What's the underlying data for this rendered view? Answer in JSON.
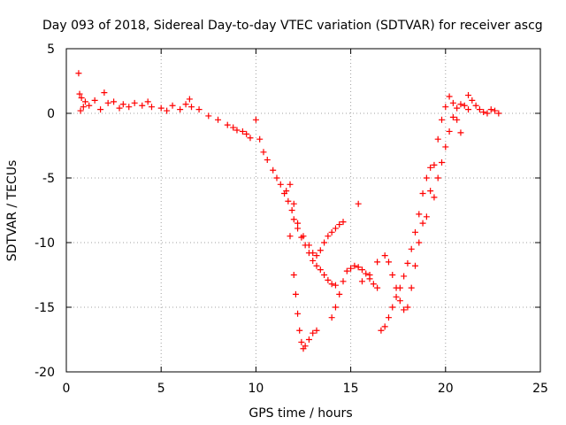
{
  "chart_data": {
    "type": "scatter",
    "title": "Day 093 of 2018, Sidereal Day-to-day VTEC variation (SDTVAR) for receiver ascg",
    "xlabel": "GPS time / hours",
    "ylabel": "SDTVAR / TECUs",
    "xlim": [
      0,
      25
    ],
    "ylim": [
      -20,
      5
    ],
    "xticks": [
      0,
      5,
      10,
      15,
      20,
      25
    ],
    "xtick_labels": [
      "0",
      "5",
      "10",
      "15",
      "20",
      "25"
    ],
    "yticks": [
      5,
      0,
      -5,
      -10,
      -15,
      -20
    ],
    "ytick_labels": [
      "5",
      "0",
      "-5",
      "-10",
      "-15",
      "-20"
    ],
    "grid": true,
    "marker": "plus",
    "color": "#ff0000",
    "series": [
      {
        "name": "SDTVAR",
        "x": [
          0.65,
          0.7,
          0.75,
          0.8,
          0.9,
          1.0,
          1.2,
          1.5,
          1.8,
          2.0,
          2.2,
          2.5,
          2.8,
          3.0,
          3.3,
          3.6,
          4.0,
          4.3,
          4.5,
          5.0,
          5.3,
          5.6,
          6.0,
          6.3,
          6.5,
          6.6,
          7.0,
          7.5,
          8.0,
          8.5,
          8.8,
          9.0,
          9.3,
          9.5,
          9.7,
          10.0,
          10.2,
          10.4,
          10.6,
          10.9,
          11.1,
          11.3,
          11.5,
          11.7,
          11.9,
          12.0,
          12.2,
          12.4,
          12.6,
          12.8,
          13.0,
          13.2,
          13.4,
          13.6,
          13.8,
          14.0,
          14.2,
          11.6,
          11.8,
          12.0,
          12.1,
          12.2,
          12.3,
          12.4,
          12.5,
          12.6,
          12.8,
          13.0,
          13.2,
          11.8,
          12.0,
          12.2,
          12.5,
          12.8,
          13.0,
          13.2,
          13.4,
          13.6,
          13.8,
          14.0,
          14.2,
          14.4,
          14.6,
          14.0,
          14.2,
          14.4,
          14.6,
          14.8,
          15.0,
          15.2,
          15.4,
          15.6,
          15.8,
          16.0,
          16.2,
          16.4,
          15.6,
          16.0,
          16.4,
          16.8,
          17.0,
          17.2,
          17.4,
          17.6,
          17.8,
          18.0,
          18.2,
          18.4,
          18.6,
          18.8,
          16.6,
          16.8,
          17.0,
          17.2,
          17.4,
          17.6,
          17.8,
          18.0,
          18.2,
          18.4,
          18.6,
          18.8,
          19.0,
          19.2,
          15.4,
          19.0,
          19.2,
          19.4,
          19.6,
          19.8,
          20.0,
          20.2,
          20.4,
          20.6,
          20.8,
          19.4,
          19.6,
          19.8,
          20.0,
          20.2,
          20.4,
          20.6,
          20.8,
          21.0,
          21.2,
          21.2,
          21.4,
          21.6,
          21.8,
          22.0,
          22.2,
          22.4,
          22.6,
          22.8
        ],
        "y": [
          3.1,
          1.5,
          0.2,
          1.2,
          0.5,
          0.9,
          0.6,
          1.0,
          0.3,
          1.6,
          0.8,
          0.9,
          0.4,
          0.7,
          0.5,
          0.8,
          0.6,
          0.9,
          0.5,
          0.4,
          0.2,
          0.6,
          0.3,
          0.7,
          1.1,
          0.5,
          0.3,
          -0.2,
          -0.5,
          -0.9,
          -1.1,
          -1.3,
          -1.4,
          -1.6,
          -1.9,
          -0.5,
          -2.0,
          -3.0,
          -3.6,
          -4.4,
          -5.0,
          -5.5,
          -6.2,
          -6.8,
          -7.5,
          -8.2,
          -8.9,
          -9.6,
          -10.2,
          -10.8,
          -11.4,
          -11.8,
          -12.1,
          -12.5,
          -12.9,
          -13.2,
          -13.3,
          -6.0,
          -9.5,
          -12.5,
          -14.0,
          -15.5,
          -16.8,
          -17.7,
          -18.2,
          -18.0,
          -17.5,
          -17.0,
          -16.8,
          -5.5,
          -7.0,
          -8.5,
          -9.5,
          -10.2,
          -10.8,
          -11.0,
          -10.6,
          -10.0,
          -9.5,
          -9.2,
          -8.9,
          -8.6,
          -8.4,
          -15.8,
          -15.0,
          -14.0,
          -13.0,
          -12.2,
          -12.0,
          -11.8,
          -11.9,
          -12.1,
          -12.4,
          -12.8,
          -13.2,
          -13.5,
          -13.0,
          -12.5,
          -11.5,
          -11.0,
          -11.5,
          -12.5,
          -13.5,
          -14.5,
          -15.2,
          -15.0,
          -13.5,
          -11.8,
          -10.0,
          -8.5,
          -16.8,
          -16.5,
          -15.8,
          -15.0,
          -14.2,
          -13.5,
          -12.6,
          -11.6,
          -10.5,
          -9.2,
          -7.8,
          -6.2,
          -5.0,
          -4.2,
          -7.0,
          -8.0,
          -6.0,
          -4.0,
          -2.0,
          -0.5,
          0.5,
          1.3,
          0.8,
          -0.5,
          -1.5,
          -6.5,
          -5.0,
          -3.8,
          -2.6,
          -1.4,
          -0.3,
          0.4,
          0.7,
          0.6,
          0.3,
          1.4,
          1.0,
          0.6,
          0.3,
          0.1,
          0.0,
          0.3,
          0.2,
          0.0
        ]
      }
    ]
  }
}
